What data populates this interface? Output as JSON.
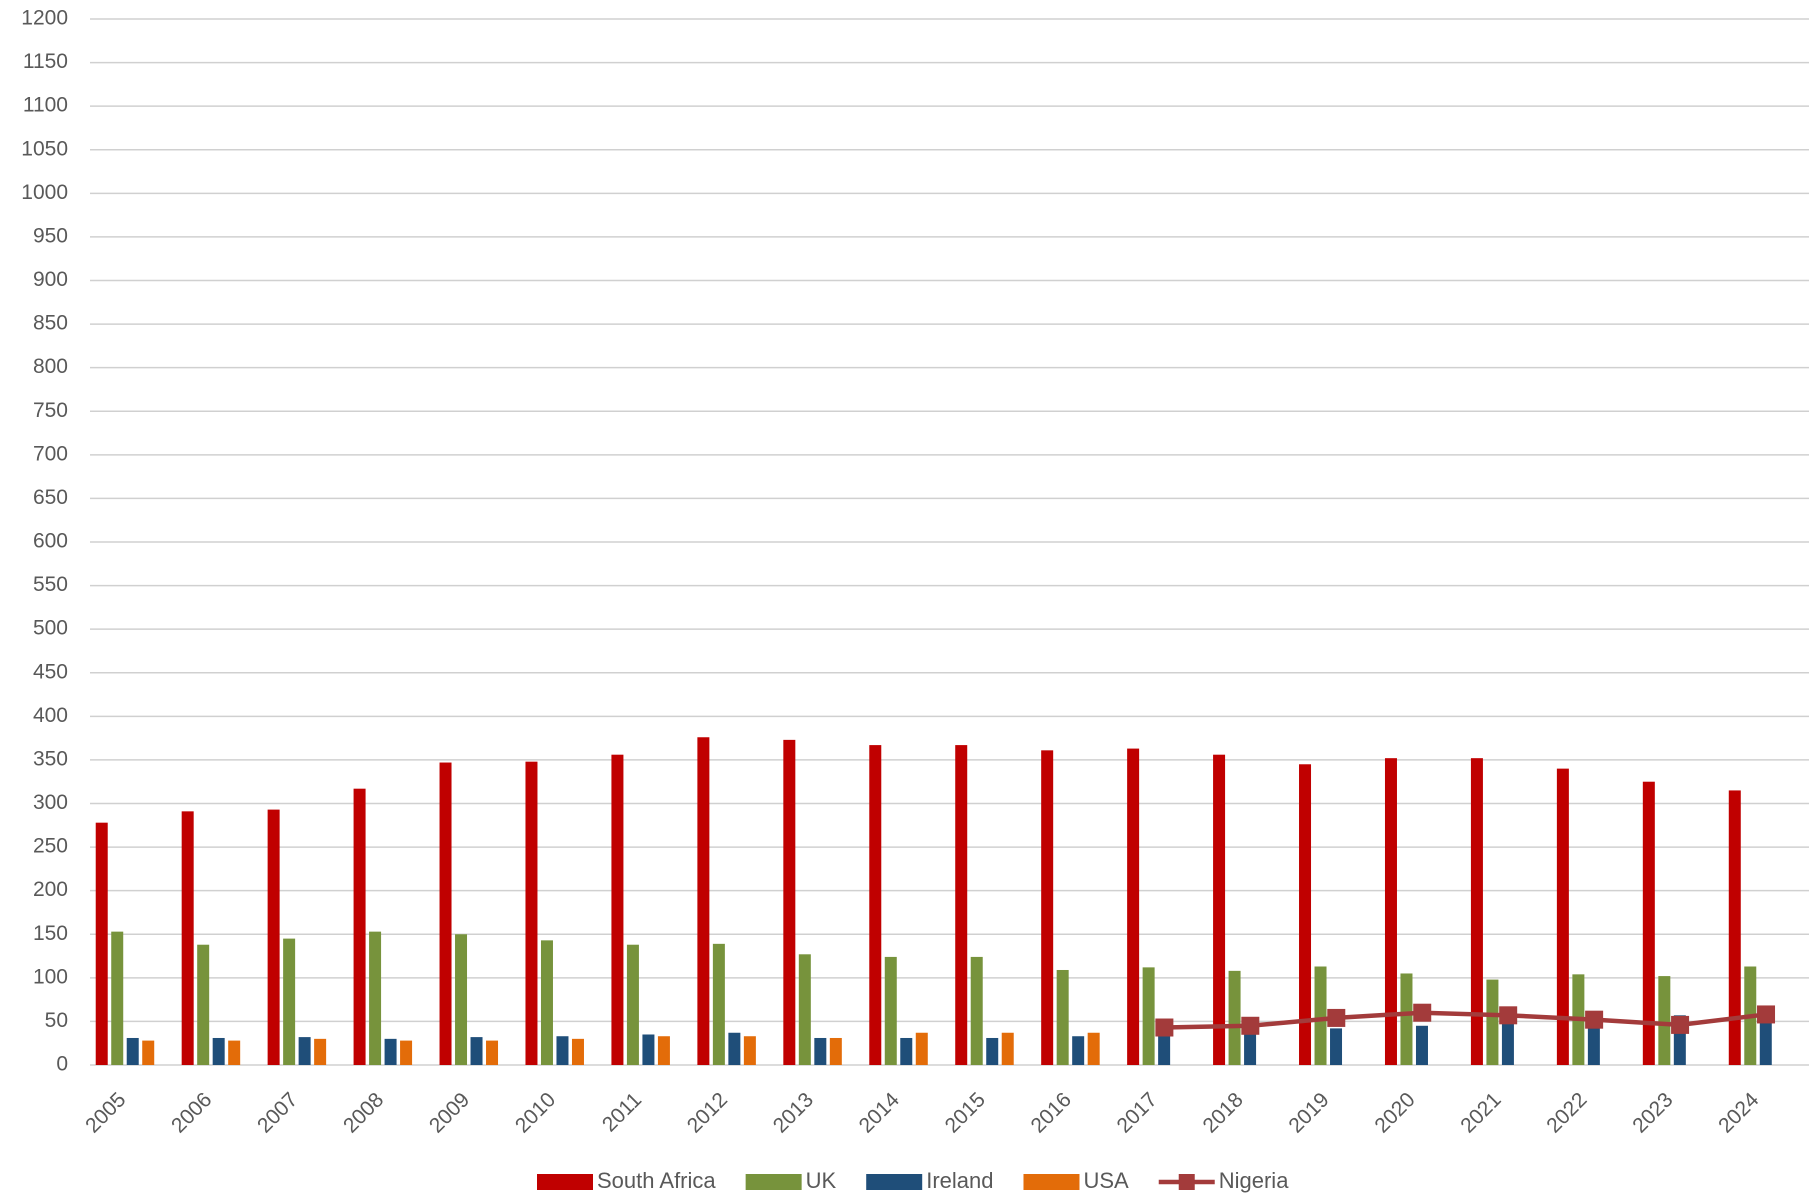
{
  "chart_data": {
    "type": "bar",
    "categories": [
      "2005",
      "2006",
      "2007",
      "2008",
      "2009",
      "2010",
      "2011",
      "2012",
      "2013",
      "2014",
      "2015",
      "2016",
      "2017",
      "2018",
      "2019",
      "2020",
      "2021",
      "2022",
      "2023",
      "2024"
    ],
    "series": [
      {
        "name": "South Africa",
        "color": "#c00000",
        "values": [
          278,
          291,
          293,
          317,
          347,
          348,
          356,
          376,
          373,
          367,
          367,
          361,
          363,
          356,
          345,
          352,
          352,
          340,
          325,
          315
        ]
      },
      {
        "name": "UK",
        "color": "#77933c",
        "values": [
          153,
          138,
          145,
          153,
          150,
          143,
          138,
          139,
          127,
          124,
          124,
          109,
          112,
          108,
          113,
          105,
          98,
          104,
          102,
          113
        ]
      },
      {
        "name": "Ireland",
        "color": "#1f4e79",
        "values": [
          31,
          31,
          32,
          30,
          32,
          33,
          35,
          37,
          31,
          31,
          31,
          33,
          40,
          42,
          42,
          45,
          50,
          58,
          57,
          66
        ]
      },
      {
        "name": "USA",
        "color": "#e36c09",
        "values": [
          28,
          28,
          30,
          28,
          28,
          30,
          33,
          33,
          31,
          37,
          37,
          37,
          null,
          null,
          null,
          null,
          null,
          null,
          null,
          null
        ]
      },
      {
        "name": "Nigeria",
        "color": "#a33b3b",
        "type": "line",
        "values": [
          null,
          null,
          null,
          null,
          null,
          null,
          null,
          null,
          null,
          null,
          null,
          null,
          43,
          45,
          54,
          60,
          57,
          52,
          46,
          58
        ]
      }
    ],
    "ylim": [
      0,
      1200
    ],
    "yticks": [
      0,
      50,
      100,
      150,
      200,
      250,
      300,
      350,
      400,
      450,
      500,
      550,
      600,
      650,
      700,
      750,
      800,
      850,
      900,
      950,
      1000,
      1050,
      1100,
      1150,
      1200
    ],
    "grid": true,
    "legend": "bottom"
  }
}
